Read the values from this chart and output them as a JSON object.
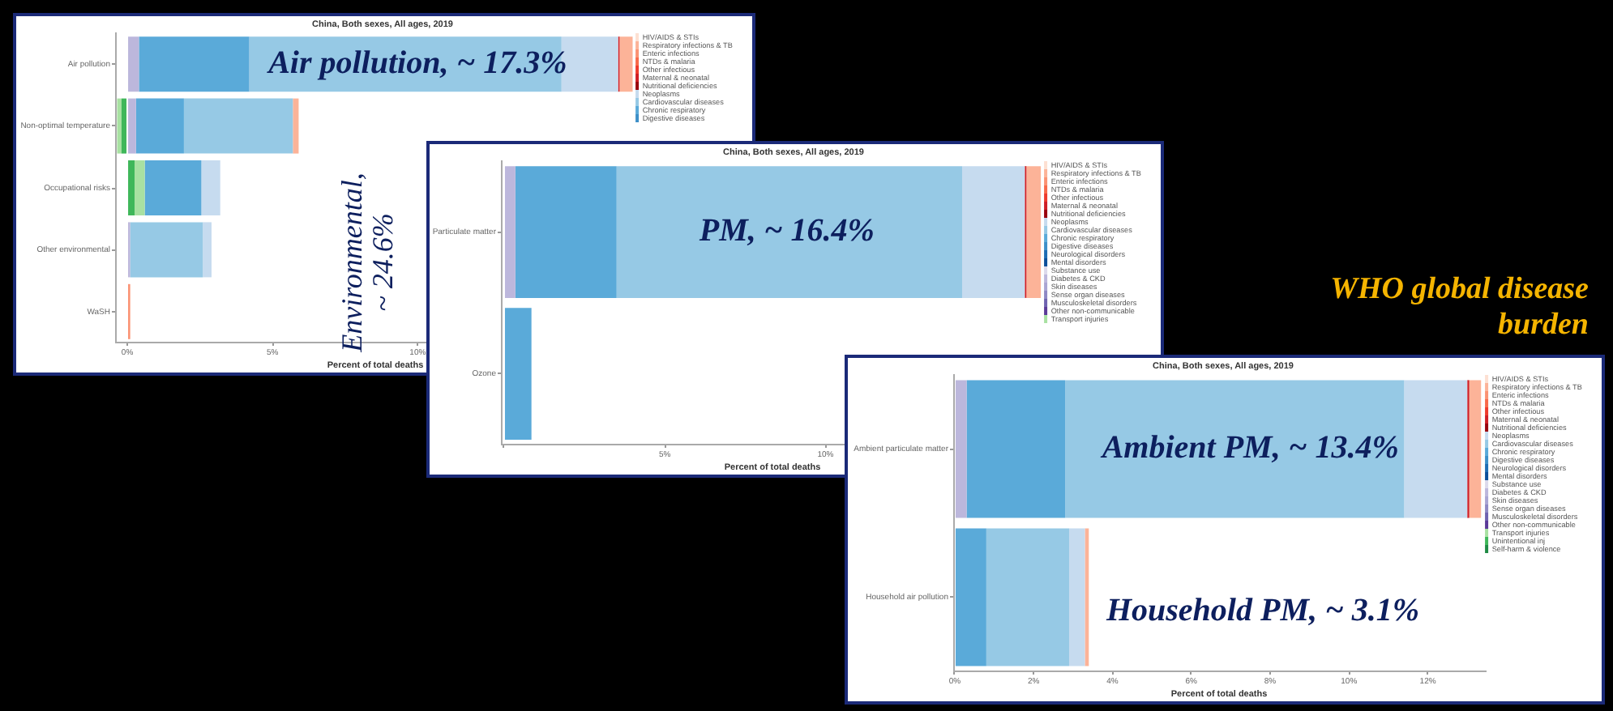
{
  "chart_data": [
    {
      "type": "bar",
      "orientation": "horizontal",
      "stacked": true,
      "title": "China, Both sexes, All ages, 2019",
      "xlabel": "Percent of total deaths",
      "legend": "top right",
      "categories": [
        "Air pollution",
        "Non-optimal temperature",
        "Occupational risks",
        "Other environmental",
        "WaSH"
      ],
      "xlim": [
        -0.42,
        17.5
      ],
      "xticks": [
        {
          "value": 0,
          "label": "0%"
        },
        {
          "value": 5,
          "label": "5%"
        },
        {
          "value": 10,
          "label": "10%"
        }
      ],
      "series": [
        {
          "color": "#3fb75a",
          "values": [
            null,
            -0.2,
            0.25,
            null,
            null
          ]
        },
        {
          "color": "#a8e1a2",
          "values": [
            null,
            -0.15,
            0.35,
            null,
            null
          ]
        },
        {
          "color": "#bcb7dc",
          "values": [
            0.4,
            0.3,
            null,
            0.1,
            null
          ]
        },
        {
          "name": "Digestive diseases",
          "color": "#3d8fc8",
          "values": [
            null,
            null,
            null,
            null,
            null
          ]
        },
        {
          "name": "Chronic respiratory",
          "color": "#5aaad9",
          "values": [
            3.8,
            1.65,
            1.95,
            null,
            null
          ]
        },
        {
          "name": "Cardiovascular diseases",
          "color": "#96c9e5",
          "values": [
            10.75,
            3.75,
            null,
            2.5,
            null
          ]
        },
        {
          "name": "Neoplasms",
          "color": "#c6dbef",
          "values": [
            1.95,
            null,
            0.65,
            0.3,
            null
          ]
        },
        {
          "name": "Nutritional deficiencies",
          "color": "#99000d",
          "values": [
            null,
            null,
            null,
            null,
            null
          ]
        },
        {
          "name": "Maternal & neonatal",
          "color": "#cf1d24",
          "values": [
            0.05,
            null,
            null,
            null,
            null
          ]
        },
        {
          "name": "Other infectious",
          "color": "#ee3a2c",
          "values": [
            null,
            null,
            null,
            null,
            null
          ]
        },
        {
          "name": "NTDs & malaria",
          "color": "#f8694a",
          "values": [
            null,
            null,
            null,
            null,
            null
          ]
        },
        {
          "name": "Enteric infections",
          "color": "#fb9273",
          "values": [
            null,
            null,
            null,
            null,
            0.1
          ]
        },
        {
          "name": "Respiratory infections & TB",
          "color": "#fcb398",
          "values": [
            0.45,
            0.2,
            null,
            null,
            null
          ]
        },
        {
          "name": "HIV/AIDS & STIs",
          "color": "#fde0d2",
          "values": [
            null,
            null,
            null,
            null,
            null
          ]
        }
      ],
      "annotations": [
        {
          "text": "Air pollution, ~ 17.3%",
          "x": 10,
          "y": "Air pollution"
        },
        "Environmental, ~ 24.6%"
      ]
    },
    {
      "type": "bar",
      "orientation": "horizontal",
      "stacked": true,
      "title": "China, Both sexes, All ages, 2019",
      "xlabel": "Percent of total deaths",
      "legend": "top right",
      "categories": [
        "Particulate matter",
        "Ozone"
      ],
      "xlim": [
        -0.1,
        16.8
      ],
      "xticks": [
        {
          "value": 0,
          "label": null
        },
        {
          "value": 5,
          "label": "5%"
        },
        {
          "value": 10,
          "label": "10%"
        }
      ],
      "series": [
        {
          "name": "Transport injuries",
          "color": "#a8e1a2",
          "values": [
            null,
            null
          ]
        },
        {
          "name": "Other non-communicable",
          "color": "#5b3a98",
          "values": [
            null,
            null
          ]
        },
        {
          "name": "Musculoskeletal disorders",
          "color": "#6f63b0",
          "values": [
            null,
            null
          ]
        },
        {
          "name": "Sense organ diseases",
          "color": "#8e88c4",
          "values": [
            null,
            null
          ]
        },
        {
          "name": "Skin diseases",
          "color": "#a9a5d3",
          "values": [
            null,
            null
          ]
        },
        {
          "name": "Diabetes & CKD",
          "color": "#bcb7dc",
          "values": [
            0.35,
            null
          ]
        },
        {
          "name": "Substance use",
          "color": "#dcdaec",
          "values": [
            null,
            null
          ]
        },
        {
          "name": "Mental disorders",
          "color": "#0b4f9a",
          "values": [
            null,
            null
          ]
        },
        {
          "name": "Neurological disorders",
          "color": "#1f6db3",
          "values": [
            null,
            null
          ]
        },
        {
          "name": "Digestive diseases",
          "color": "#3d8fc8",
          "values": [
            null,
            null
          ]
        },
        {
          "name": "Chronic respiratory",
          "color": "#5aaad9",
          "values": [
            3.15,
            0.85
          ]
        },
        {
          "name": "Cardiovascular diseases",
          "color": "#96c9e5",
          "values": [
            10.75,
            null
          ]
        },
        {
          "name": "Neoplasms",
          "color": "#c6dbef",
          "values": [
            1.95,
            null
          ]
        },
        {
          "name": "Nutritional deficiencies",
          "color": "#99000d",
          "values": [
            null,
            null
          ]
        },
        {
          "name": "Maternal & neonatal",
          "color": "#cf1d24",
          "values": [
            0.05,
            null
          ]
        },
        {
          "name": "Other infectious",
          "color": "#ee3a2c",
          "values": [
            null,
            null
          ]
        },
        {
          "name": "NTDs & malaria",
          "color": "#f8694a",
          "values": [
            null,
            null
          ]
        },
        {
          "name": "Enteric infections",
          "color": "#fb9273",
          "values": [
            null,
            null
          ]
        },
        {
          "name": "Respiratory infections & TB",
          "color": "#fcb398",
          "values": [
            0.45,
            null
          ]
        },
        {
          "name": "HIV/AIDS & STIs",
          "color": "#fde0d2",
          "values": [
            null,
            null
          ]
        }
      ],
      "annotations": [
        {
          "text": "PM, ~ 16.4%",
          "x": 8.8,
          "y": "Particulate matter"
        }
      ]
    },
    {
      "type": "bar",
      "orientation": "horizontal",
      "stacked": true,
      "title": "China, Both sexes, All ages, 2019",
      "xlabel": "Percent of total deaths",
      "legend": "top right",
      "categories": [
        "Ambient particulate matter",
        "Household air pollution"
      ],
      "xlim": [
        -0.04,
        13.45
      ],
      "xticks": [
        {
          "value": 0,
          "label": "0%"
        },
        {
          "value": 2,
          "label": "2%"
        },
        {
          "value": 4,
          "label": "4%"
        },
        {
          "value": 6,
          "label": "6%"
        },
        {
          "value": 8,
          "label": "8%"
        },
        {
          "value": 10,
          "label": "10%"
        },
        {
          "value": 12,
          "label": "12%"
        }
      ],
      "series": [
        {
          "name": "Self-harm & violence",
          "color": "#1f8a44",
          "values": [
            null,
            null
          ]
        },
        {
          "name": "Unintentional inj",
          "color": "#3fb75a",
          "values": [
            null,
            null
          ]
        },
        {
          "name": "Transport injuries",
          "color": "#a8e1a2",
          "values": [
            null,
            null
          ]
        },
        {
          "name": "Other non-communicable",
          "color": "#5b3a98",
          "values": [
            null,
            null
          ]
        },
        {
          "name": "Musculoskeletal disorders",
          "color": "#6f63b0",
          "values": [
            null,
            null
          ]
        },
        {
          "name": "Sense organ diseases",
          "color": "#8e88c4",
          "values": [
            null,
            null
          ]
        },
        {
          "name": "Skin diseases",
          "color": "#a9a5d3",
          "values": [
            null,
            null
          ]
        },
        {
          "name": "Diabetes & CKD",
          "color": "#bcb7dc",
          "values": [
            0.3,
            null
          ]
        },
        {
          "name": "Substance use",
          "color": "#dcdaec",
          "values": [
            null,
            null
          ]
        },
        {
          "name": "Mental disorders",
          "color": "#0b4f9a",
          "values": [
            null,
            null
          ]
        },
        {
          "name": "Neurological disorders",
          "color": "#1f6db3",
          "values": [
            null,
            null
          ]
        },
        {
          "name": "Digestive diseases",
          "color": "#3d8fc8",
          "values": [
            null,
            null
          ]
        },
        {
          "name": "Chronic respiratory",
          "color": "#5aaad9",
          "values": [
            2.5,
            0.8
          ]
        },
        {
          "name": "Cardiovascular diseases",
          "color": "#96c9e5",
          "values": [
            8.6,
            2.1
          ]
        },
        {
          "name": "Neoplasms",
          "color": "#c6dbef",
          "values": [
            1.6,
            0.4
          ]
        },
        {
          "name": "Nutritional deficiencies",
          "color": "#99000d",
          "values": [
            null,
            null
          ]
        },
        {
          "name": "Maternal & neonatal",
          "color": "#cf1d24",
          "values": [
            0.05,
            null
          ]
        },
        {
          "name": "Other infectious",
          "color": "#ee3a2c",
          "values": [
            null,
            null
          ]
        },
        {
          "name": "NTDs & malaria",
          "color": "#f8694a",
          "values": [
            null,
            null
          ]
        },
        {
          "name": "Enteric infections",
          "color": "#fb9273",
          "values": [
            null,
            null
          ]
        },
        {
          "name": "Respiratory infections & TB",
          "color": "#fcb398",
          "values": [
            0.3,
            0.1
          ]
        },
        {
          "name": "HIV/AIDS & STIs",
          "color": "#fde0d2",
          "values": [
            null,
            null
          ]
        }
      ],
      "annotations": [
        {
          "text": "Ambient PM, ~ 13.4%",
          "x": 7.5,
          "y": "Ambient particulate matter"
        },
        "Household PM, ~ 3.1%"
      ]
    },
    {
      "type": "other",
      "title": "WHO global disease burden"
    }
  ]
}
